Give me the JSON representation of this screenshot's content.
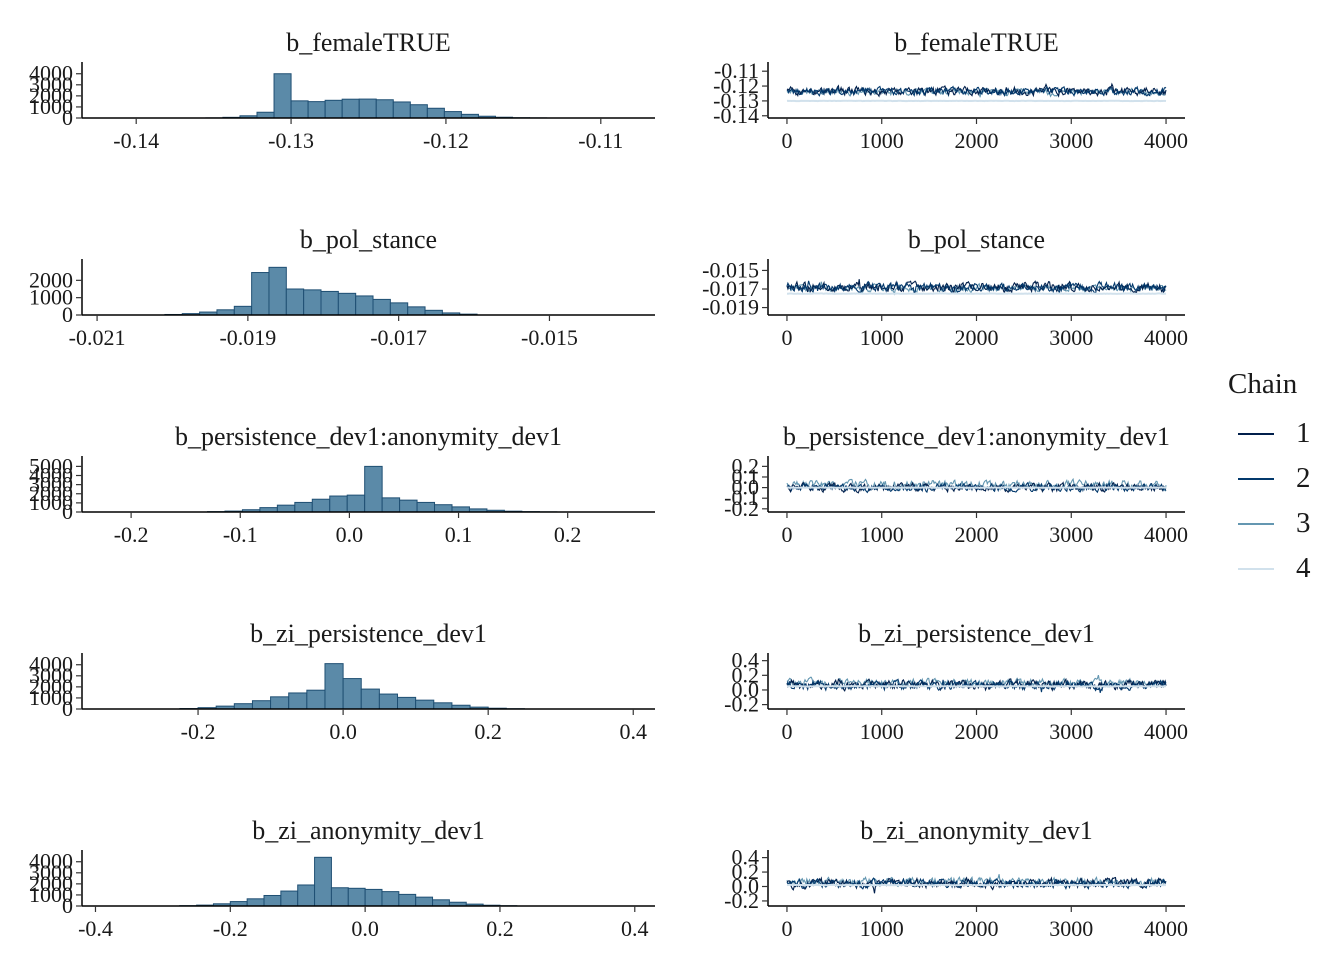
{
  "legend": {
    "title": "Chain",
    "items": [
      {
        "label": "1",
        "color": "#011f4b"
      },
      {
        "label": "2",
        "color": "#03396c"
      },
      {
        "label": "3",
        "color": "#6497b1"
      },
      {
        "label": "4",
        "color": "#d1e1ec"
      }
    ]
  },
  "chart_data": [
    {
      "type": "bar",
      "title": "b_femaleTRUE",
      "xlim": [
        -0.1435,
        -0.1065
      ],
      "ylim": [
        0,
        4700
      ],
      "xticks": [
        -0.14,
        -0.13,
        -0.12,
        -0.11
      ],
      "xtick_labels": [
        "-0.14",
        "-0.13",
        "-0.12",
        "-0.11"
      ],
      "yticks": [
        0,
        1000,
        2000,
        3000,
        4000
      ],
      "ytick_labels": [
        "0",
        "1000",
        "2000",
        "3000",
        "4000"
      ],
      "bin_start": -0.1355,
      "bin_width": 0.0011,
      "values": [
        10,
        60,
        200,
        520,
        4000,
        1550,
        1480,
        1600,
        1700,
        1710,
        1650,
        1450,
        1200,
        880,
        580,
        330,
        160,
        70,
        25,
        10
      ]
    },
    {
      "type": "line",
      "title": "b_femaleTRUE",
      "xlim": [
        -200,
        4200
      ],
      "ylim": [
        -0.1415,
        -0.1065
      ],
      "xticks": [
        0,
        1000,
        2000,
        3000,
        4000
      ],
      "xtick_labels": [
        "0",
        "1000",
        "2000",
        "3000",
        "4000"
      ],
      "yticks": [
        -0.11,
        -0.12,
        -0.13,
        -0.14
      ],
      "ytick_labels": [
        "-0.11",
        "-0.12",
        "-0.13",
        "-0.14"
      ],
      "chains": [
        {
          "name": "1",
          "center": -0.1235,
          "spread": 0.0048
        },
        {
          "name": "2",
          "center": -0.1235,
          "spread": 0.0043
        },
        {
          "name": "3",
          "center": -0.124,
          "spread": 0.0034
        },
        {
          "name": "4",
          "center": -0.13,
          "spread": 0.0002
        }
      ]
    },
    {
      "type": "bar",
      "title": "b_pol_stance",
      "xlim": [
        -0.0212,
        -0.0136
      ],
      "ylim": [
        0,
        3000
      ],
      "xticks": [
        -0.021,
        -0.019,
        -0.017,
        -0.015
      ],
      "xtick_labels": [
        "-0.021",
        "-0.019",
        "-0.017",
        "-0.015"
      ],
      "yticks": [
        0,
        1000,
        2000
      ],
      "ytick_labels": [
        "0",
        "1000",
        "2000"
      ],
      "bin_start": -0.0201,
      "bin_width": 0.00023,
      "values": [
        30,
        80,
        170,
        300,
        500,
        2450,
        2750,
        1500,
        1450,
        1360,
        1250,
        1100,
        900,
        700,
        470,
        270,
        120,
        50
      ]
    },
    {
      "type": "line",
      "title": "b_pol_stance",
      "xlim": [
        -200,
        4200
      ],
      "ylim": [
        -0.0198,
        -0.0142
      ],
      "xticks": [
        0,
        1000,
        2000,
        3000,
        4000
      ],
      "xtick_labels": [
        "0",
        "1000",
        "2000",
        "3000",
        "4000"
      ],
      "yticks": [
        -0.015,
        -0.017,
        -0.019
      ],
      "ytick_labels": [
        "-0.015",
        "-0.017",
        "-0.019"
      ],
      "chains": [
        {
          "name": "1",
          "center": -0.0168,
          "spread": 0.0009
        },
        {
          "name": "2",
          "center": -0.0168,
          "spread": 0.0008
        },
        {
          "name": "3",
          "center": -0.0169,
          "spread": 0.0006
        },
        {
          "name": "4",
          "center": -0.0175,
          "spread": 4e-05
        }
      ]
    },
    {
      "type": "bar",
      "title": "b_persistence_dev1:anonymity_dev1",
      "xlim": [
        -0.245,
        0.28
      ],
      "ylim": [
        0,
        5700
      ],
      "xticks": [
        -0.2,
        -0.1,
        0.0,
        0.1,
        0.2
      ],
      "xtick_labels": [
        "-0.2",
        "-0.1",
        "0.0",
        "0.1",
        "0.2"
      ],
      "yticks": [
        0,
        1000,
        2000,
        3000,
        4000,
        5000
      ],
      "ytick_labels": [
        "0",
        "1000",
        "2000",
        "3000",
        "4000",
        "5000"
      ],
      "bin_start": -0.13,
      "bin_width": 0.016,
      "values": [
        40,
        100,
        250,
        480,
        750,
        1050,
        1400,
        1750,
        1850,
        5000,
        1550,
        1300,
        1050,
        800,
        560,
        340,
        190,
        90,
        40,
        15
      ]
    },
    {
      "type": "line",
      "title": "b_persistence_dev1:anonymity_dev1",
      "xlim": [
        -200,
        4200
      ],
      "ylim": [
        -0.23,
        0.26
      ],
      "xticks": [
        0,
        1000,
        2000,
        3000,
        4000
      ],
      "xtick_labels": [
        "0",
        "1000",
        "2000",
        "3000",
        "4000"
      ],
      "yticks": [
        0.2,
        0.1,
        0.0,
        -0.1,
        -0.2
      ],
      "ytick_labels": [
        "0.2",
        "0.1",
        "0.0",
        "-0.1",
        "-0.2"
      ],
      "chains": [
        {
          "name": "1",
          "center": 0.0,
          "spread": 0.065
        },
        {
          "name": "2",
          "center": 0.0,
          "spread": 0.06
        },
        {
          "name": "3",
          "center": 0.03,
          "spread": 0.07
        },
        {
          "name": "4",
          "center": 0.0,
          "spread": 0.003
        }
      ]
    },
    {
      "type": "bar",
      "title": "b_zi_persistence_dev1",
      "xlim": [
        -0.36,
        0.43
      ],
      "ylim": [
        0,
        4700
      ],
      "xticks": [
        -0.2,
        0.0,
        0.2,
        0.4
      ],
      "xtick_labels": [
        "-0.2",
        "0.0",
        "0.2",
        "0.4"
      ],
      "yticks": [
        0,
        1000,
        2000,
        3000,
        4000
      ],
      "ytick_labels": [
        "0",
        "1000",
        "2000",
        "3000",
        "4000"
      ],
      "bin_start": -0.225,
      "bin_width": 0.025,
      "values": [
        40,
        120,
        260,
        480,
        750,
        1100,
        1450,
        1700,
        4100,
        2750,
        1800,
        1350,
        1050,
        800,
        560,
        340,
        170,
        70,
        25
      ]
    },
    {
      "type": "line",
      "title": "b_zi_persistence_dev1",
      "xlim": [
        -200,
        4200
      ],
      "ylim": [
        -0.26,
        0.45
      ],
      "xticks": [
        0,
        1000,
        2000,
        3000,
        4000
      ],
      "xtick_labels": [
        "0",
        "1000",
        "2000",
        "3000",
        "4000"
      ],
      "yticks": [
        0.4,
        0.2,
        0.0,
        -0.2
      ],
      "ytick_labels": [
        "0.4",
        "0.2",
        "0.0",
        "-0.2"
      ],
      "chains": [
        {
          "name": "1",
          "center": 0.07,
          "spread": 0.11
        },
        {
          "name": "2",
          "center": 0.06,
          "spread": 0.1
        },
        {
          "name": "3",
          "center": 0.1,
          "spread": 0.09
        },
        {
          "name": "4",
          "center": 0.05,
          "spread": 0.005
        }
      ]
    },
    {
      "type": "bar",
      "title": "b_zi_anonymity_dev1",
      "xlim": [
        -0.42,
        0.43
      ],
      "ylim": [
        0,
        4700
      ],
      "xticks": [
        -0.4,
        -0.2,
        0.0,
        0.2,
        0.4
      ],
      "xtick_labels": [
        "-0.4",
        "-0.2",
        "0.0",
        "0.2",
        "0.4"
      ],
      "yticks": [
        0,
        1000,
        2000,
        3000,
        4000
      ],
      "ytick_labels": [
        "0",
        "1000",
        "2000",
        "3000",
        "4000"
      ],
      "bin_start": -0.275,
      "bin_width": 0.025,
      "values": [
        30,
        80,
        200,
        400,
        650,
        950,
        1350,
        1900,
        4400,
        1650,
        1600,
        1500,
        1300,
        1050,
        800,
        560,
        340,
        170,
        70,
        25
      ]
    },
    {
      "type": "line",
      "title": "b_zi_anonymity_dev1",
      "xlim": [
        -200,
        4200
      ],
      "ylim": [
        -0.27,
        0.45
      ],
      "xticks": [
        0,
        1000,
        2000,
        3000,
        4000
      ],
      "xtick_labels": [
        "0",
        "1000",
        "2000",
        "3000",
        "4000"
      ],
      "yticks": [
        0.4,
        0.2,
        0.0,
        -0.2
      ],
      "ytick_labels": [
        "0.4",
        "0.2",
        "0.0",
        "-0.2"
      ],
      "chains": [
        {
          "name": "1",
          "center": 0.04,
          "spread": 0.11
        },
        {
          "name": "2",
          "center": 0.04,
          "spread": 0.1
        },
        {
          "name": "3",
          "center": 0.07,
          "spread": 0.09
        },
        {
          "name": "4",
          "center": 0.02,
          "spread": 0.005
        }
      ]
    }
  ]
}
